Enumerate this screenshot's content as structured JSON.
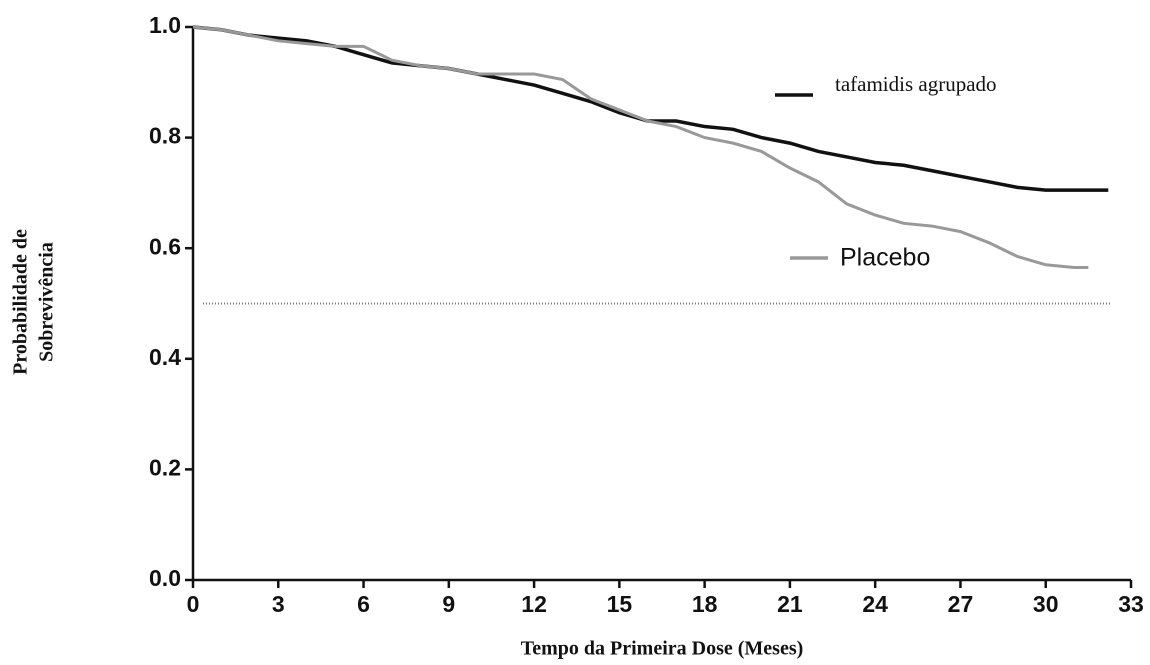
{
  "chart_data": {
    "type": "line",
    "xlabel": "Tempo da Primeira Dose (Meses)",
    "ylabel": [
      "Probabilidade de",
      "Sobrevivência"
    ],
    "xlim": [
      0,
      33
    ],
    "xticks": [
      0,
      3,
      6,
      9,
      12,
      15,
      18,
      21,
      24,
      27,
      30,
      33
    ],
    "ylim": [
      0,
      1
    ],
    "yticks": [
      {
        "value": 0,
        "label": "0.0"
      },
      0.2,
      0.4,
      0.6,
      0.8,
      {
        "value": 1,
        "label": "1.0"
      }
    ],
    "hline": 0.5,
    "series": [
      {
        "name": "tafamidis agrupado",
        "color": "#111111",
        "x": [
          0,
          1,
          2,
          3,
          4,
          5,
          6,
          7,
          8,
          9,
          10,
          11,
          12,
          13,
          14,
          15,
          16,
          17,
          18,
          19,
          20,
          21,
          22,
          23,
          24,
          25,
          26,
          27,
          28,
          29,
          30,
          31,
          32.2
        ],
        "values": [
          1.0,
          0.995,
          0.985,
          0.98,
          0.975,
          0.965,
          0.95,
          0.935,
          0.93,
          0.925,
          0.915,
          0.905,
          0.895,
          0.88,
          0.865,
          0.845,
          0.83,
          0.83,
          0.82,
          0.815,
          0.8,
          0.79,
          0.775,
          0.765,
          0.755,
          0.75,
          0.74,
          0.73,
          0.72,
          0.71,
          0.705,
          0.705,
          0.705
        ]
      },
      {
        "name": "Placebo",
        "color": "#999999",
        "x": [
          0,
          1,
          2,
          3,
          4,
          5,
          6,
          7,
          8,
          9,
          10,
          11,
          12,
          13,
          14,
          15,
          16,
          17,
          18,
          19,
          20,
          21,
          22,
          23,
          24,
          25,
          26,
          27,
          28,
          29,
          30,
          31,
          31.5
        ],
        "values": [
          1.0,
          0.995,
          0.985,
          0.975,
          0.97,
          0.965,
          0.965,
          0.94,
          0.93,
          0.925,
          0.915,
          0.915,
          0.915,
          0.905,
          0.87,
          0.85,
          0.83,
          0.82,
          0.8,
          0.79,
          0.775,
          0.745,
          0.72,
          0.68,
          0.66,
          0.645,
          0.64,
          0.63,
          0.61,
          0.585,
          0.57,
          0.565,
          0.565
        ]
      }
    ]
  }
}
